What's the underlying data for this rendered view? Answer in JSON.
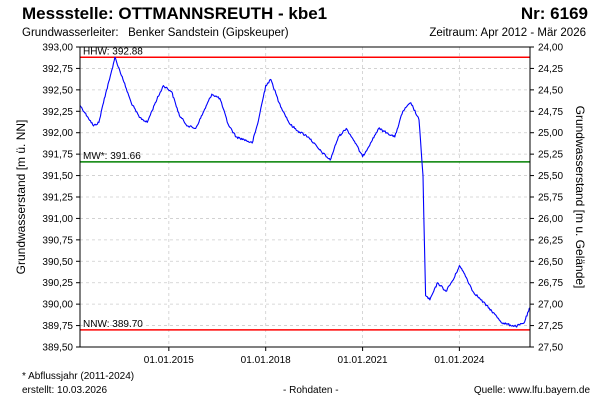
{
  "header": {
    "title": "Messstelle: OTTMANNSREUTH - kbe1",
    "number": "Nr: 6169",
    "aquifer_label": "Grundwasserleiter:",
    "aquifer_value": "Benker Sandstein (Gipskeuper)",
    "period": "Zeitraum: Apr 2012 - Mär 2026"
  },
  "footer": {
    "note": "* Abflussjahr (2011-2024)",
    "created": "erstellt:  10.03.2026",
    "raw": "- Rohdaten -",
    "source": "Quelle:  www.lfu.bayern.de"
  },
  "colors": {
    "series": "#0000ff",
    "hhw": "#ff0000",
    "nnw": "#ff0000",
    "mw": "#008000",
    "grid": "#cccccc"
  },
  "chart_data": {
    "type": "line",
    "ylabel": "Grundwasserstand [m ü. NN]",
    "y2label": "Grundwasserstand [m u. Gelände]",
    "ylim": [
      389.5,
      393.0
    ],
    "y2lim": [
      27.5,
      24.0
    ],
    "xlim": [
      "2012-04-01",
      "2026-03-10"
    ],
    "grid": true,
    "yticks": [
      "389,50",
      "389,75",
      "390,00",
      "390,25",
      "390,50",
      "390,75",
      "391,00",
      "391,25",
      "391,50",
      "391,75",
      "392,00",
      "392,25",
      "392,50",
      "392,75",
      "393,00"
    ],
    "y2ticks": [
      "27,50",
      "27,25",
      "27,00",
      "26,75",
      "26,50",
      "26,25",
      "26,00",
      "25,75",
      "25,50",
      "25,25",
      "25,00",
      "24,75",
      "24,50",
      "24,25",
      "24,00"
    ],
    "xticks": [
      {
        "date": "2015-01-01",
        "label": "01.01.2015"
      },
      {
        "date": "2018-01-01",
        "label": "01.01.2018"
      },
      {
        "date": "2021-01-01",
        "label": "01.01.2021"
      },
      {
        "date": "2024-01-01",
        "label": "01.01.2024"
      }
    ],
    "reference_lines": [
      {
        "key": "hhw",
        "label": "HHW: 392.88",
        "value": 392.88
      },
      {
        "key": "mw",
        "label": "MW*: 391.66",
        "value": 391.66
      },
      {
        "key": "nnw",
        "label": "NNW: 389.70",
        "value": 389.7
      }
    ],
    "series": [
      {
        "values": [
          [
            "2012-04-01",
            392.32
          ],
          [
            "2012-07-01",
            392.18
          ],
          [
            "2012-09-01",
            392.08
          ],
          [
            "2012-11-01",
            392.12
          ],
          [
            "2013-01-01",
            392.4
          ],
          [
            "2013-03-01",
            392.62
          ],
          [
            "2013-05-01",
            392.88
          ],
          [
            "2013-08-01",
            392.62
          ],
          [
            "2013-11-01",
            392.35
          ],
          [
            "2014-02-01",
            392.18
          ],
          [
            "2014-05-01",
            392.12
          ],
          [
            "2014-08-01",
            392.35
          ],
          [
            "2014-11-01",
            392.55
          ],
          [
            "2015-02-01",
            392.48
          ],
          [
            "2015-05-01",
            392.2
          ],
          [
            "2015-08-01",
            392.08
          ],
          [
            "2015-11-01",
            392.05
          ],
          [
            "2016-02-01",
            392.25
          ],
          [
            "2016-05-01",
            392.45
          ],
          [
            "2016-08-01",
            392.4
          ],
          [
            "2016-11-01",
            392.1
          ],
          [
            "2017-02-01",
            391.95
          ],
          [
            "2017-05-01",
            391.92
          ],
          [
            "2017-08-01",
            391.88
          ],
          [
            "2017-10-01",
            392.1
          ],
          [
            "2018-01-01",
            392.55
          ],
          [
            "2018-03-01",
            392.62
          ],
          [
            "2018-06-01",
            392.35
          ],
          [
            "2018-10-01",
            392.1
          ],
          [
            "2019-01-01",
            392.02
          ],
          [
            "2019-05-01",
            391.95
          ],
          [
            "2019-09-01",
            391.8
          ],
          [
            "2020-01-01",
            391.68
          ],
          [
            "2020-04-01",
            391.95
          ],
          [
            "2020-07-01",
            392.05
          ],
          [
            "2020-10-01",
            391.9
          ],
          [
            "2021-01-01",
            391.72
          ],
          [
            "2021-04-01",
            391.88
          ],
          [
            "2021-07-01",
            392.05
          ],
          [
            "2021-10-01",
            392.0
          ],
          [
            "2022-01-01",
            391.95
          ],
          [
            "2022-04-01",
            392.25
          ],
          [
            "2022-07-01",
            392.35
          ],
          [
            "2022-10-01",
            392.15
          ],
          [
            "2022-11-15",
            391.5
          ],
          [
            "2022-12-15",
            390.1
          ],
          [
            "2023-02-01",
            390.05
          ],
          [
            "2023-05-01",
            390.25
          ],
          [
            "2023-08-01",
            390.15
          ],
          [
            "2023-11-01",
            390.3
          ],
          [
            "2024-01-01",
            390.45
          ],
          [
            "2024-03-01",
            390.35
          ],
          [
            "2024-06-01",
            390.15
          ],
          [
            "2024-09-01",
            390.05
          ],
          [
            "2025-01-01",
            389.92
          ],
          [
            "2025-05-01",
            389.78
          ],
          [
            "2025-10-01",
            389.74
          ],
          [
            "2026-01-01",
            389.78
          ],
          [
            "2026-03-10",
            389.96
          ]
        ]
      }
    ]
  }
}
